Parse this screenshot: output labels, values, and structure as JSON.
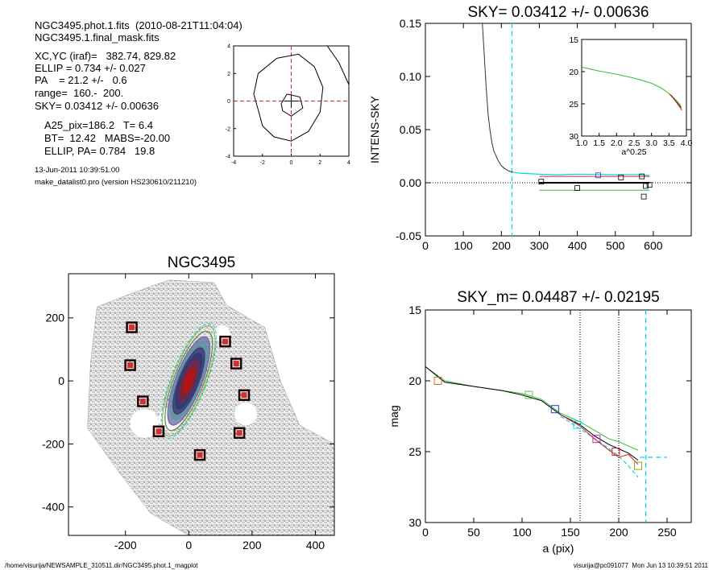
{
  "header": {
    "line1": "NGC3495.phot.1.fits  (2010-08-21T11:04:04)",
    "line2": "NGC3495.1.final_mask.fits",
    "xcyc": "XC,YC (iraf)=   382.74, 829.82",
    "ellip": "ELLIP = 0.734 +/- 0.027",
    "pa": "PA    = 21.2 +/-   0.6",
    "range": "range=  160.-  200.",
    "sky": "SKY= 0.03412 +/- 0.00636",
    "a25": "A25_pix=186.2   T= 6.4",
    "bt": "BT=  12.42   MABS=-20.00",
    "ellip_pa": "ELLIP, PA= 0.784   19.8",
    "date": "13-Jun-2011 10:39:51.00",
    "program": "make_datalist0.pro (version HS230610/211210)"
  },
  "footer": {
    "left": "/home/visurija/NEWSAMPLE_310511.dir/NGC3495.phot.1_magplot",
    "right": "visurija@pc091077  Mon Jun 13 10:39:51 2011"
  },
  "colors": {
    "cyan": "#00d8e8",
    "red": "#e02020",
    "green": "#30c030",
    "blue": "#2040c0",
    "purple": "#c020c0",
    "olive": "#a0a000",
    "marker_dark": "#200000",
    "marker_red": "#d03030"
  },
  "chart_data": [
    {
      "id": "small_contour",
      "type": "contour",
      "xlim": [
        -4,
        4
      ],
      "ylim": [
        -4,
        4
      ],
      "xticks": [
        "-4",
        "-2",
        "0",
        "2",
        "4"
      ],
      "yticks": [
        "4",
        "2",
        "0",
        "-2",
        "-4"
      ],
      "tick_values": [
        -4,
        -2,
        0,
        2,
        4
      ]
    },
    {
      "id": "intens_sky",
      "type": "line",
      "title": "SKY= 0.03412 +/- 0.00636",
      "ylabel": "INTENS-SKY",
      "xlim": [
        0,
        700
      ],
      "ylim": [
        -0.05,
        0.15
      ],
      "xticks": [
        "0",
        "100",
        "200",
        "300",
        "400",
        "500",
        "600"
      ],
      "xtick_values": [
        0,
        100,
        200,
        300,
        400,
        500,
        600
      ],
      "yticks": [
        "0.15",
        "0.10",
        "0.05",
        "0.00",
        "-0.05"
      ],
      "ytick_values": [
        0.15,
        0.1,
        0.05,
        0.0,
        -0.05
      ],
      "vline_cyan": 228,
      "profile": [
        [
          150,
          0.15
        ],
        [
          155,
          0.12
        ],
        [
          160,
          0.09
        ],
        [
          165,
          0.065
        ],
        [
          170,
          0.05
        ],
        [
          175,
          0.038
        ],
        [
          180,
          0.03
        ],
        [
          190,
          0.022
        ],
        [
          200,
          0.016
        ],
        [
          210,
          0.013
        ],
        [
          220,
          0.011
        ],
        [
          230,
          0.01
        ]
      ],
      "profile_tail": [
        [
          230,
          0.01
        ],
        [
          250,
          0.009
        ],
        [
          300,
          0.008
        ],
        [
          350,
          0.0075
        ],
        [
          400,
          0.008
        ],
        [
          450,
          0.0078
        ],
        [
          500,
          0.0076
        ],
        [
          550,
          0.0077
        ],
        [
          590,
          0.007
        ]
      ],
      "sky_level_black": [
        [
          300,
          0.0
        ],
        [
          590,
          0.0
        ]
      ],
      "green_line": [
        [
          300,
          -0.007
        ],
        [
          590,
          -0.007
        ]
      ],
      "red_line": [
        [
          300,
          0.006
        ],
        [
          590,
          0.006
        ]
      ],
      "squares": [
        [
          305,
          0.001
        ],
        [
          400,
          -0.005
        ],
        [
          455,
          0.007
        ],
        [
          515,
          0.005
        ],
        [
          570,
          0.006
        ],
        [
          575,
          -0.013
        ],
        [
          580,
          -0.003
        ],
        [
          590,
          -0.002
        ]
      ],
      "inset": {
        "xlabel": "a^0.25",
        "xlim": [
          1.0,
          4.0
        ],
        "ylim": [
          15,
          30
        ],
        "xticks": [
          "1.0",
          "1.5",
          "2.0",
          "2.5",
          "3.0",
          "3.5",
          "4.0"
        ],
        "xtick_values": [
          1.0,
          1.5,
          2.0,
          2.5,
          3.0,
          3.5,
          4.0
        ],
        "yticks": [
          "15",
          "20",
          "25",
          "30"
        ],
        "ytick_values": [
          15,
          20,
          25,
          30
        ],
        "green": [
          [
            1.0,
            19.3
          ],
          [
            1.5,
            19.9
          ],
          [
            2.0,
            20.4
          ],
          [
            2.5,
            21.0
          ],
          [
            3.0,
            21.8
          ],
          [
            3.3,
            22.6
          ],
          [
            3.5,
            23.4
          ],
          [
            3.7,
            24.4
          ],
          [
            3.85,
            25.3
          ]
        ],
        "red": [
          [
            3.5,
            23.4
          ],
          [
            3.65,
            24.3
          ],
          [
            3.8,
            25.4
          ],
          [
            3.87,
            26.0
          ]
        ],
        "black": [
          [
            3.55,
            23.6
          ],
          [
            3.7,
            24.6
          ],
          [
            3.85,
            25.6
          ]
        ]
      }
    },
    {
      "id": "galaxy_image",
      "type": "scatter",
      "title": "NGC3495",
      "xlim": [
        -380,
        460
      ],
      "ylim": [
        -490,
        340
      ],
      "xticks": [
        "-200",
        "0",
        "200",
        "400"
      ],
      "xtick_values": [
        -200,
        0,
        200,
        400
      ],
      "yticks": [
        "200",
        "0",
        "-200",
        "-400"
      ],
      "ytick_values": [
        200,
        0,
        -200,
        -400
      ],
      "ellipse": {
        "cx": 0,
        "cy": 0,
        "a": 186,
        "b": 50,
        "pa": 21.2
      },
      "sky_boxes": [
        [
          -180,
          170
        ],
        [
          -185,
          50
        ],
        [
          -145,
          -65
        ],
        [
          -95,
          -160
        ],
        [
          35,
          -235
        ],
        [
          115,
          125
        ],
        [
          150,
          55
        ],
        [
          175,
          -45
        ],
        [
          160,
          -165
        ]
      ]
    },
    {
      "id": "magnitude_profile",
      "type": "line",
      "title": "SKY_m=  0.04487 +/- 0.02195",
      "xlabel": "a (pix)",
      "ylabel": "mag",
      "xlim": [
        0,
        275
      ],
      "ylim": [
        15,
        30
      ],
      "xticks": [
        "0",
        "50",
        "100",
        "150",
        "200",
        "250"
      ],
      "xtick_values": [
        0,
        50,
        100,
        150,
        200,
        250
      ],
      "yticks": [
        "15",
        "20",
        "25",
        "30"
      ],
      "ytick_values": [
        15,
        20,
        25,
        30
      ],
      "vlines_dotted": [
        160,
        200
      ],
      "vline_cyan": 228,
      "cyan_hline": [
        [
          222,
          25.4
        ],
        [
          250,
          25.4
        ]
      ],
      "black": [
        [
          0,
          19.0
        ],
        [
          20,
          20.1
        ],
        [
          50,
          20.4
        ],
        [
          80,
          20.7
        ],
        [
          100,
          21.0
        ],
        [
          120,
          21.4
        ],
        [
          140,
          22.4
        ],
        [
          160,
          23.1
        ],
        [
          175,
          23.9
        ],
        [
          190,
          24.5
        ],
        [
          200,
          24.8
        ],
        [
          210,
          25.1
        ],
        [
          220,
          25.6
        ]
      ],
      "green": [
        [
          0,
          19.0
        ],
        [
          20,
          20.0
        ],
        [
          50,
          20.4
        ],
        [
          80,
          20.7
        ],
        [
          100,
          20.9
        ],
        [
          120,
          21.3
        ],
        [
          140,
          22.3
        ],
        [
          160,
          22.9
        ],
        [
          175,
          23.5
        ],
        [
          190,
          24.1
        ],
        [
          200,
          24.3
        ],
        [
          210,
          24.6
        ],
        [
          220,
          24.9
        ]
      ],
      "red": [
        [
          140,
          22.4
        ],
        [
          160,
          23.2
        ],
        [
          175,
          24.1
        ],
        [
          190,
          24.9
        ],
        [
          200,
          25.4
        ],
        [
          210,
          25.2
        ],
        [
          220,
          25.9
        ]
      ],
      "cyan_dash": [
        [
          140,
          22.5
        ],
        [
          160,
          23.4
        ],
        [
          180,
          24.3
        ],
        [
          200,
          25.3
        ],
        [
          210,
          26.0
        ],
        [
          220,
          26.8
        ]
      ],
      "squares": [
        {
          "x": 13,
          "y": 20.0,
          "c": "#d07030"
        },
        {
          "x": 107,
          "y": 21.0,
          "c": "#60c060"
        },
        {
          "x": 134,
          "y": 22.0,
          "c": "#2040c0"
        },
        {
          "x": 157,
          "y": 23.1,
          "c": "#00d8e8"
        },
        {
          "x": 177,
          "y": 24.1,
          "c": "#c020c0"
        },
        {
          "x": 197,
          "y": 25.0,
          "c": "#e02020"
        },
        {
          "x": 220,
          "y": 26.0,
          "c": "#a0a000"
        }
      ]
    }
  ]
}
